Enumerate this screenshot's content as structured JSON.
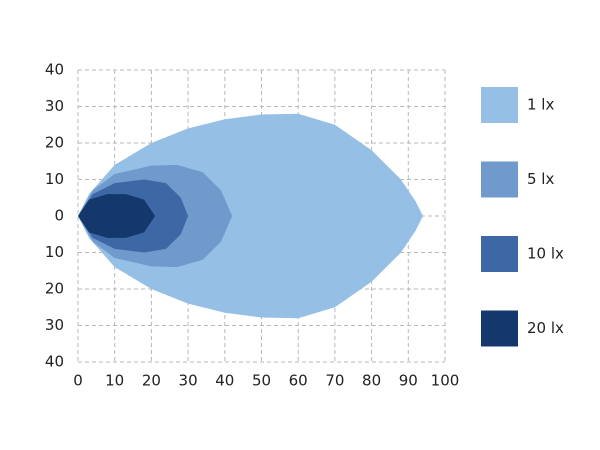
{
  "chart_data": {
    "type": "contour",
    "xlim": [
      0,
      100
    ],
    "xticks": [
      0,
      10,
      20,
      30,
      40,
      50,
      60,
      70,
      80,
      90,
      100
    ],
    "ylim": [
      -40,
      40
    ],
    "yticks": [
      40,
      30,
      20,
      10,
      0,
      {
        "value": -10,
        "label": "10"
      },
      {
        "value": -20,
        "label": "20"
      },
      {
        "value": -30,
        "label": "30"
      },
      {
        "value": -40,
        "label": "40"
      }
    ],
    "grid": true,
    "legend": "right",
    "series": [
      {
        "name": "1 lx",
        "color": "#96bfe6",
        "x": [
          0,
          3,
          10,
          20,
          30,
          40,
          50,
          60,
          70,
          80,
          88,
          92,
          94,
          92,
          88,
          80,
          70,
          60,
          50,
          40,
          30,
          20,
          10,
          3
        ],
        "y": [
          0,
          6,
          14,
          20,
          24,
          26.5,
          27.8,
          28,
          25,
          18,
          10,
          4,
          0,
          -4,
          -10,
          -18,
          -25,
          -28,
          -27.8,
          -26.5,
          -24,
          -20,
          -14,
          -6
        ]
      },
      {
        "name": "5 lx",
        "color": "#6f9acb",
        "x": [
          0,
          4,
          10,
          20,
          27,
          34,
          39,
          42,
          39,
          34,
          27,
          20,
          10,
          4
        ],
        "y": [
          0,
          7,
          11.5,
          13.8,
          14,
          12,
          7,
          0,
          -7,
          -12,
          -14,
          -13.8,
          -11.5,
          -7
        ]
      },
      {
        "name": "10 lx",
        "color": "#3d68a5",
        "x": [
          0,
          4,
          10,
          18,
          24,
          28,
          30,
          28,
          24,
          18,
          10,
          4
        ],
        "y": [
          0,
          6,
          9,
          10,
          9,
          5,
          0,
          -5,
          -9,
          -10,
          -9,
          -6
        ]
      },
      {
        "name": "20 lx",
        "color": "#14386c",
        "x": [
          0,
          3,
          8,
          13,
          18,
          21,
          18,
          13,
          8,
          3
        ],
        "y": [
          0,
          4.5,
          6,
          6,
          4.5,
          0,
          -4.5,
          -6,
          -6,
          -4.5
        ]
      }
    ]
  }
}
